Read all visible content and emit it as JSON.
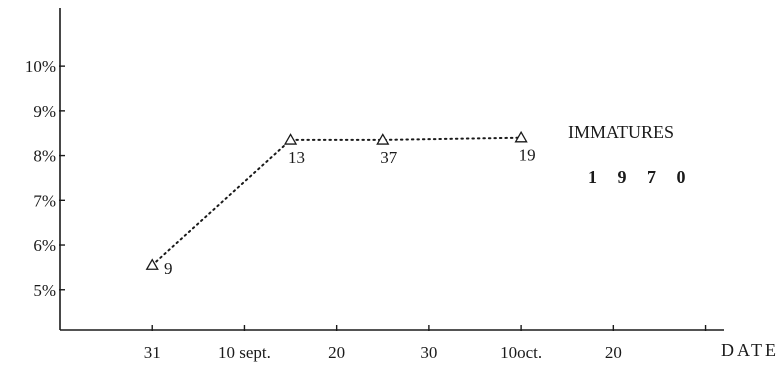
{
  "chart_data": {
    "type": "line",
    "title": "",
    "xlabel": "DATE",
    "ylabel": "",
    "x_ticks": [
      {
        "value": 31,
        "label": "31"
      },
      {
        "value": 41,
        "label": "10 sept."
      },
      {
        "value": 51,
        "label": "20"
      },
      {
        "value": 61,
        "label": "30"
      },
      {
        "value": 71,
        "label": "10oct."
      },
      {
        "value": 81,
        "label": "20"
      },
      {
        "value": 91,
        "label": ""
      }
    ],
    "y_ticks": [
      {
        "value": 5,
        "label": "5%"
      },
      {
        "value": 6,
        "label": "6%"
      },
      {
        "value": 7,
        "label": "7%"
      },
      {
        "value": 8,
        "label": "8%"
      },
      {
        "value": 9,
        "label": "9%"
      },
      {
        "value": 10,
        "label": "10%"
      }
    ],
    "xlim": [
      21,
      93
    ],
    "ylim": [
      4.1,
      11.3
    ],
    "series": [
      {
        "name": "IMMATURES",
        "points": [
          {
            "x": 31,
            "y": 5.55,
            "label": "9"
          },
          {
            "x": 46,
            "y": 8.35,
            "label": "13"
          },
          {
            "x": 56,
            "y": 8.35,
            "label": "37"
          },
          {
            "x": 71,
            "y": 8.4,
            "label": "19"
          }
        ]
      }
    ],
    "series_label": "IMMATURES",
    "year_label": "1 9 7 0",
    "grid": false
  }
}
